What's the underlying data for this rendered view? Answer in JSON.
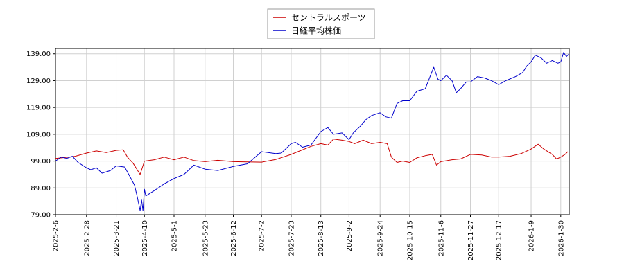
{
  "chart_data": {
    "type": "line",
    "title": "",
    "xlabel": "",
    "ylabel": "",
    "ylim": [
      79.0,
      141.0
    ],
    "xlim": [
      "2025-02-06",
      "2026-02-05"
    ],
    "grid": true,
    "legend": "top-center",
    "y_ticks": [
      "79.00",
      "89.00",
      "99.00",
      "109.00",
      "119.00",
      "129.00",
      "139.00"
    ],
    "x_ticks": [
      "2025-2-6",
      "2025-2-28",
      "2025-3-21",
      "2025-4-10",
      "2025-5-1",
      "2025-5-23",
      "2025-6-12",
      "2025-7-2",
      "2025-7-23",
      "2025-8-13",
      "2025-9-2",
      "2025-9-24",
      "2025-10-15",
      "2025-11-6",
      "2025-11-27",
      "2025-12-17",
      "2026-1-9",
      "2026-1-30"
    ],
    "series": [
      {
        "name": "セントラルスポーツ",
        "color": "#cc0000",
        "points": [
          [
            "2025-02-06",
            100.0
          ],
          [
            "2025-02-12",
            100.3
          ],
          [
            "2025-02-20",
            100.8
          ],
          [
            "2025-02-28",
            102.0
          ],
          [
            "2025-03-07",
            102.8
          ],
          [
            "2025-03-14",
            102.2
          ],
          [
            "2025-03-21",
            103.0
          ],
          [
            "2025-03-26",
            103.2
          ],
          [
            "2025-03-29",
            100.5
          ],
          [
            "2025-04-02",
            98.2
          ],
          [
            "2025-04-07",
            94.0
          ],
          [
            "2025-04-10",
            99.0
          ],
          [
            "2025-04-17",
            99.5
          ],
          [
            "2025-04-24",
            100.5
          ],
          [
            "2025-05-01",
            99.5
          ],
          [
            "2025-05-08",
            100.5
          ],
          [
            "2025-05-15",
            99.2
          ],
          [
            "2025-05-23",
            98.8
          ],
          [
            "2025-06-01",
            99.3
          ],
          [
            "2025-06-12",
            98.8
          ],
          [
            "2025-06-22",
            98.7
          ],
          [
            "2025-07-02",
            98.6
          ],
          [
            "2025-07-12",
            99.6
          ],
          [
            "2025-07-23",
            101.5
          ],
          [
            "2025-07-30",
            103.0
          ],
          [
            "2025-08-06",
            104.5
          ],
          [
            "2025-08-13",
            105.5
          ],
          [
            "2025-08-18",
            105.0
          ],
          [
            "2025-08-22",
            107.2
          ],
          [
            "2025-08-28",
            106.8
          ],
          [
            "2025-09-02",
            106.3
          ],
          [
            "2025-09-06",
            105.5
          ],
          [
            "2025-09-12",
            106.8
          ],
          [
            "2025-09-18",
            105.5
          ],
          [
            "2025-09-24",
            106.0
          ],
          [
            "2025-09-29",
            105.5
          ],
          [
            "2025-10-02",
            100.5
          ],
          [
            "2025-10-06",
            98.5
          ],
          [
            "2025-10-10",
            99.0
          ],
          [
            "2025-10-15",
            98.5
          ],
          [
            "2025-10-20",
            100.2
          ],
          [
            "2025-10-26",
            101.0
          ],
          [
            "2025-10-31",
            101.5
          ],
          [
            "2025-11-03",
            97.5
          ],
          [
            "2025-11-06",
            98.8
          ],
          [
            "2025-11-14",
            99.5
          ],
          [
            "2025-11-20",
            99.8
          ],
          [
            "2025-11-27",
            101.5
          ],
          [
            "2025-12-05",
            101.3
          ],
          [
            "2025-12-12",
            100.5
          ],
          [
            "2025-12-17",
            100.5
          ],
          [
            "2025-12-25",
            100.8
          ],
          [
            "2026-01-02",
            101.8
          ],
          [
            "2026-01-09",
            103.5
          ],
          [
            "2026-01-14",
            105.3
          ],
          [
            "2026-01-18",
            103.5
          ],
          [
            "2026-01-24",
            101.5
          ],
          [
            "2026-01-27",
            99.8
          ],
          [
            "2026-01-30",
            100.5
          ],
          [
            "2026-02-02",
            101.5
          ],
          [
            "2026-02-04",
            102.5
          ]
        ]
      },
      {
        "name": "日経平均株価",
        "color": "#0000cc",
        "points": [
          [
            "2025-02-06",
            99.0
          ],
          [
            "2025-02-10",
            100.5
          ],
          [
            "2025-02-14",
            100.0
          ],
          [
            "2025-02-18",
            100.8
          ],
          [
            "2025-02-22",
            98.5
          ],
          [
            "2025-02-28",
            96.5
          ],
          [
            "2025-03-03",
            95.8
          ],
          [
            "2025-03-07",
            96.5
          ],
          [
            "2025-03-11",
            94.5
          ],
          [
            "2025-03-17",
            95.5
          ],
          [
            "2025-03-21",
            97.2
          ],
          [
            "2025-03-27",
            96.8
          ],
          [
            "2025-03-31",
            93.0
          ],
          [
            "2025-04-03",
            90.0
          ],
          [
            "2025-04-05",
            85.5
          ],
          [
            "2025-04-07",
            80.5
          ],
          [
            "2025-04-08",
            84.5
          ],
          [
            "2025-04-09",
            80.5
          ],
          [
            "2025-04-10",
            88.5
          ],
          [
            "2025-04-11",
            86.0
          ],
          [
            "2025-04-17",
            88.0
          ],
          [
            "2025-04-24",
            90.5
          ],
          [
            "2025-05-01",
            92.5
          ],
          [
            "2025-05-08",
            94.0
          ],
          [
            "2025-05-15",
            97.5
          ],
          [
            "2025-05-23",
            96.0
          ],
          [
            "2025-06-01",
            95.5
          ],
          [
            "2025-06-12",
            97.0
          ],
          [
            "2025-06-22",
            98.0
          ],
          [
            "2025-07-02",
            102.5
          ],
          [
            "2025-07-12",
            101.8
          ],
          [
            "2025-07-16",
            102.0
          ],
          [
            "2025-07-23",
            105.5
          ],
          [
            "2025-07-26",
            106.0
          ],
          [
            "2025-07-31",
            104.2
          ],
          [
            "2025-08-06",
            105.0
          ],
          [
            "2025-08-13",
            110.0
          ],
          [
            "2025-08-18",
            111.5
          ],
          [
            "2025-08-22",
            109.0
          ],
          [
            "2025-08-28",
            109.5
          ],
          [
            "2025-09-02",
            107.0
          ],
          [
            "2025-09-05",
            109.5
          ],
          [
            "2025-09-10",
            112.0
          ],
          [
            "2025-09-14",
            114.5
          ],
          [
            "2025-09-18",
            116.0
          ],
          [
            "2025-09-24",
            117.0
          ],
          [
            "2025-09-28",
            115.5
          ],
          [
            "2025-10-02",
            115.0
          ],
          [
            "2025-10-06",
            120.5
          ],
          [
            "2025-10-10",
            121.5
          ],
          [
            "2025-10-15",
            121.5
          ],
          [
            "2025-10-20",
            125.0
          ],
          [
            "2025-10-26",
            126.0
          ],
          [
            "2025-10-29",
            130.0
          ],
          [
            "2025-11-01",
            134.0
          ],
          [
            "2025-11-04",
            129.5
          ],
          [
            "2025-11-06",
            129.0
          ],
          [
            "2025-11-10",
            131.0
          ],
          [
            "2025-11-14",
            129.0
          ],
          [
            "2025-11-17",
            124.5
          ],
          [
            "2025-11-20",
            126.0
          ],
          [
            "2025-11-24",
            128.5
          ],
          [
            "2025-11-27",
            128.5
          ],
          [
            "2025-12-02",
            130.5
          ],
          [
            "2025-12-07",
            130.0
          ],
          [
            "2025-12-12",
            129.0
          ],
          [
            "2025-12-17",
            127.5
          ],
          [
            "2025-12-22",
            129.0
          ],
          [
            "2025-12-29",
            130.5
          ],
          [
            "2026-01-03",
            132.0
          ],
          [
            "2026-01-06",
            134.5
          ],
          [
            "2026-01-09",
            136.0
          ],
          [
            "2026-01-12",
            138.5
          ],
          [
            "2026-01-16",
            137.5
          ],
          [
            "2026-01-20",
            135.5
          ],
          [
            "2026-01-24",
            136.5
          ],
          [
            "2026-01-28",
            135.5
          ],
          [
            "2026-01-30",
            136.0
          ],
          [
            "2026-02-01",
            139.5
          ],
          [
            "2026-02-03",
            138.0
          ],
          [
            "2026-02-05",
            139.0
          ]
        ]
      }
    ]
  }
}
